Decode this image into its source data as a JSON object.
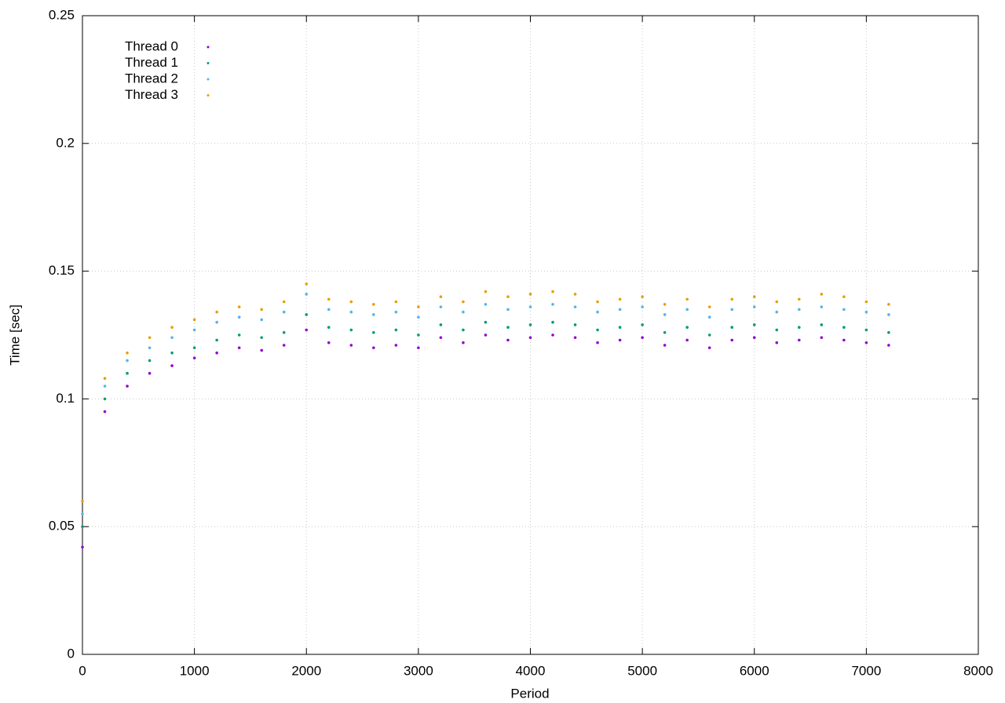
{
  "chart_data": {
    "type": "scatter",
    "x_label": "Period",
    "y_label": "Time [sec]",
    "x": [
      0,
      200,
      400,
      600,
      800,
      1000,
      1200,
      1400,
      1600,
      1800,
      2000,
      2200,
      2400,
      2600,
      2800,
      3000,
      3200,
      3400,
      3600,
      3800,
      4000,
      4200,
      4400,
      4600,
      4800,
      5000,
      5200,
      5400,
      5600,
      5800,
      6000,
      6200,
      6400,
      6600,
      6800,
      7000,
      7200
    ],
    "series": [
      {
        "name": "Thread 0",
        "color": "#9400d3",
        "values": [
          0.042,
          0.095,
          0.105,
          0.11,
          0.113,
          0.116,
          0.118,
          0.12,
          0.119,
          0.121,
          0.127,
          0.122,
          0.121,
          0.12,
          0.121,
          0.12,
          0.124,
          0.122,
          0.125,
          0.123,
          0.124,
          0.125,
          0.124,
          0.122,
          0.123,
          0.124,
          0.121,
          0.123,
          0.12,
          0.123,
          0.124,
          0.122,
          0.123,
          0.124,
          0.123,
          0.122,
          0.121
        ]
      },
      {
        "name": "Thread 1",
        "color": "#009e73",
        "values": [
          0.05,
          0.1,
          0.11,
          0.115,
          0.118,
          0.12,
          0.123,
          0.125,
          0.124,
          0.126,
          0.133,
          0.128,
          0.127,
          0.126,
          0.127,
          0.125,
          0.129,
          0.127,
          0.13,
          0.128,
          0.129,
          0.13,
          0.129,
          0.127,
          0.128,
          0.129,
          0.126,
          0.128,
          0.125,
          0.128,
          0.129,
          0.127,
          0.128,
          0.129,
          0.128,
          0.127,
          0.126
        ]
      },
      {
        "name": "Thread 2",
        "color": "#56b4e9",
        "values": [
          0.055,
          0.105,
          0.115,
          0.12,
          0.124,
          0.127,
          0.13,
          0.132,
          0.131,
          0.134,
          0.141,
          0.135,
          0.134,
          0.133,
          0.134,
          0.132,
          0.136,
          0.134,
          0.137,
          0.135,
          0.136,
          0.137,
          0.136,
          0.134,
          0.135,
          0.136,
          0.133,
          0.135,
          0.132,
          0.135,
          0.136,
          0.134,
          0.135,
          0.136,
          0.135,
          0.134,
          0.133
        ]
      },
      {
        "name": "Thread 3",
        "color": "#e69f00",
        "values": [
          0.06,
          0.108,
          0.118,
          0.124,
          0.128,
          0.131,
          0.134,
          0.136,
          0.135,
          0.138,
          0.145,
          0.139,
          0.138,
          0.137,
          0.138,
          0.136,
          0.14,
          0.138,
          0.142,
          0.14,
          0.141,
          0.142,
          0.141,
          0.138,
          0.139,
          0.14,
          0.137,
          0.139,
          0.136,
          0.139,
          0.14,
          0.138,
          0.139,
          0.141,
          0.14,
          0.138,
          0.137
        ]
      }
    ],
    "xlim": [
      0,
      8000
    ],
    "xticks": [
      0,
      1000,
      2000,
      3000,
      4000,
      5000,
      6000,
      7000,
      8000
    ],
    "ylim": [
      0,
      0.25
    ],
    "yticks": [
      0,
      0.05,
      0.1,
      0.15,
      0.2,
      0.25
    ],
    "grid": true,
    "legend": "top-left"
  }
}
